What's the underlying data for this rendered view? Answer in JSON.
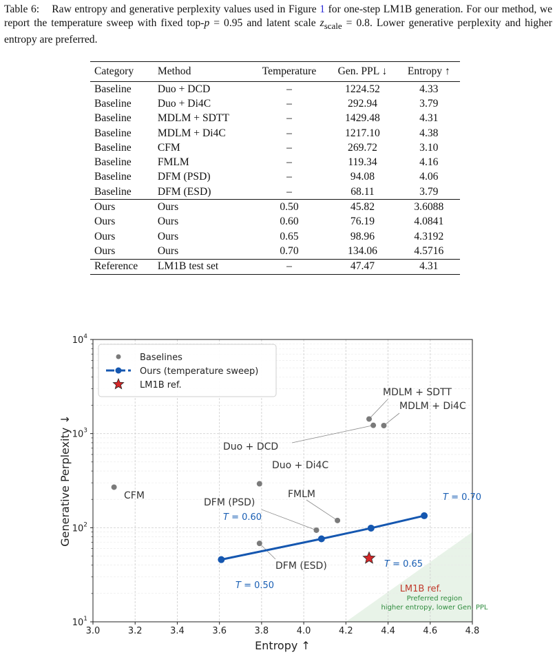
{
  "caption": {
    "label": "Table 6:",
    "text_before_ref": "Raw entropy and generative perplexity values used in Figure",
    "ref": "1",
    "text_after_ref": "for one-step LM1B generation. For our method, we report the temperature sweep with fixed top-",
    "p_symbol": "p",
    "p_eq": " = 0.95",
    "text_mid": " and latent scale ",
    "z_symbol": "z",
    "z_sub": "scale",
    "z_eq": " = 0.8",
    "text_end": ". Lower generative perplexity and higher entropy are preferred."
  },
  "table": {
    "headers": [
      "Category",
      "Method",
      "Temperature",
      "Gen. PPL ↓",
      "Entropy ↑"
    ],
    "baseline_rows": [
      [
        "Baseline",
        "Duo + DCD",
        "–",
        "1224.52",
        "4.33"
      ],
      [
        "Baseline",
        "Duo + Di4C",
        "–",
        "292.94",
        "3.79"
      ],
      [
        "Baseline",
        "MDLM + SDTT",
        "–",
        "1429.48",
        "4.31"
      ],
      [
        "Baseline",
        "MDLM + Di4C",
        "–",
        "1217.10",
        "4.38"
      ],
      [
        "Baseline",
        "CFM",
        "–",
        "269.72",
        "3.10"
      ],
      [
        "Baseline",
        "FMLM",
        "–",
        "119.34",
        "4.16"
      ],
      [
        "Baseline",
        "DFM (PSD)",
        "–",
        "94.08",
        "4.06"
      ],
      [
        "Baseline",
        "DFM (ESD)",
        "–",
        "68.11",
        "3.79"
      ]
    ],
    "ours_rows": [
      [
        "Ours",
        "Ours",
        "0.50",
        "45.82",
        "3.6088"
      ],
      [
        "Ours",
        "Ours",
        "0.60",
        "76.19",
        "4.0841"
      ],
      [
        "Ours",
        "Ours",
        "0.65",
        "98.96",
        "4.3192"
      ],
      [
        "Ours",
        "Ours",
        "0.70",
        "134.06",
        "4.5716"
      ]
    ],
    "reference_rows": [
      [
        "Reference",
        "LM1B test set",
        "–",
        "47.47",
        "4.31"
      ]
    ]
  },
  "chart_data": {
    "type": "scatter",
    "xlabel": "Entropy ↑",
    "ylabel": "Generative Perplexity ↓",
    "xlim": [
      3.0,
      4.8
    ],
    "ylim": [
      10,
      10000
    ],
    "yscale": "log",
    "grid": true,
    "legend_position": "top-left",
    "x_ticks": [
      "3.0",
      "3.2",
      "3.4",
      "3.6",
      "3.8",
      "4.0",
      "4.2",
      "4.4",
      "4.6",
      "4.8"
    ],
    "y_ticks": [
      {
        "base": "10",
        "exp": "1",
        "value": 10
      },
      {
        "base": "10",
        "exp": "2",
        "value": 100
      },
      {
        "base": "10",
        "exp": "3",
        "value": 1000
      },
      {
        "base": "10",
        "exp": "4",
        "value": 10000
      }
    ],
    "legend": [
      "Baselines",
      "Ours (temperature sweep)",
      "LM1B ref."
    ],
    "baselines": [
      {
        "name": "Duo + DCD",
        "x": 4.33,
        "y": 1224.52
      },
      {
        "name": "Duo + Di4C",
        "x": 3.79,
        "y": 292.94
      },
      {
        "name": "MDLM + SDTT",
        "x": 4.31,
        "y": 1429.48
      },
      {
        "name": "MDLM + Di4C",
        "x": 4.38,
        "y": 1217.1
      },
      {
        "name": "CFM",
        "x": 3.1,
        "y": 269.72
      },
      {
        "name": "FMLM",
        "x": 4.16,
        "y": 119.34
      },
      {
        "name": "DFM (PSD)",
        "x": 4.06,
        "y": 94.08
      },
      {
        "name": "DFM (ESD)",
        "x": 3.79,
        "y": 68.11
      }
    ],
    "ours": [
      {
        "label": "T = 0.50",
        "x": 3.6088,
        "y": 45.82
      },
      {
        "label": "T = 0.60",
        "x": 4.0841,
        "y": 76.19
      },
      {
        "label": "T = 0.65",
        "x": 4.3192,
        "y": 98.96
      },
      {
        "label": "T = 0.70",
        "x": 4.5716,
        "y": 134.06
      }
    ],
    "reference": {
      "label": "LM1B ref.",
      "x": 4.31,
      "y": 47.47
    },
    "preferred_region_text": [
      "Preferred region",
      "higher entropy, lower Gen. PPL"
    ],
    "colors": {
      "baseline": "#7a7a7a",
      "ours": "#1557b0",
      "ours_label": "#1a5fb4",
      "reference": "#d62728",
      "reference_label": "#c0392b",
      "region": "#2e8b3d",
      "region_fill": "#e5f2e5"
    }
  }
}
